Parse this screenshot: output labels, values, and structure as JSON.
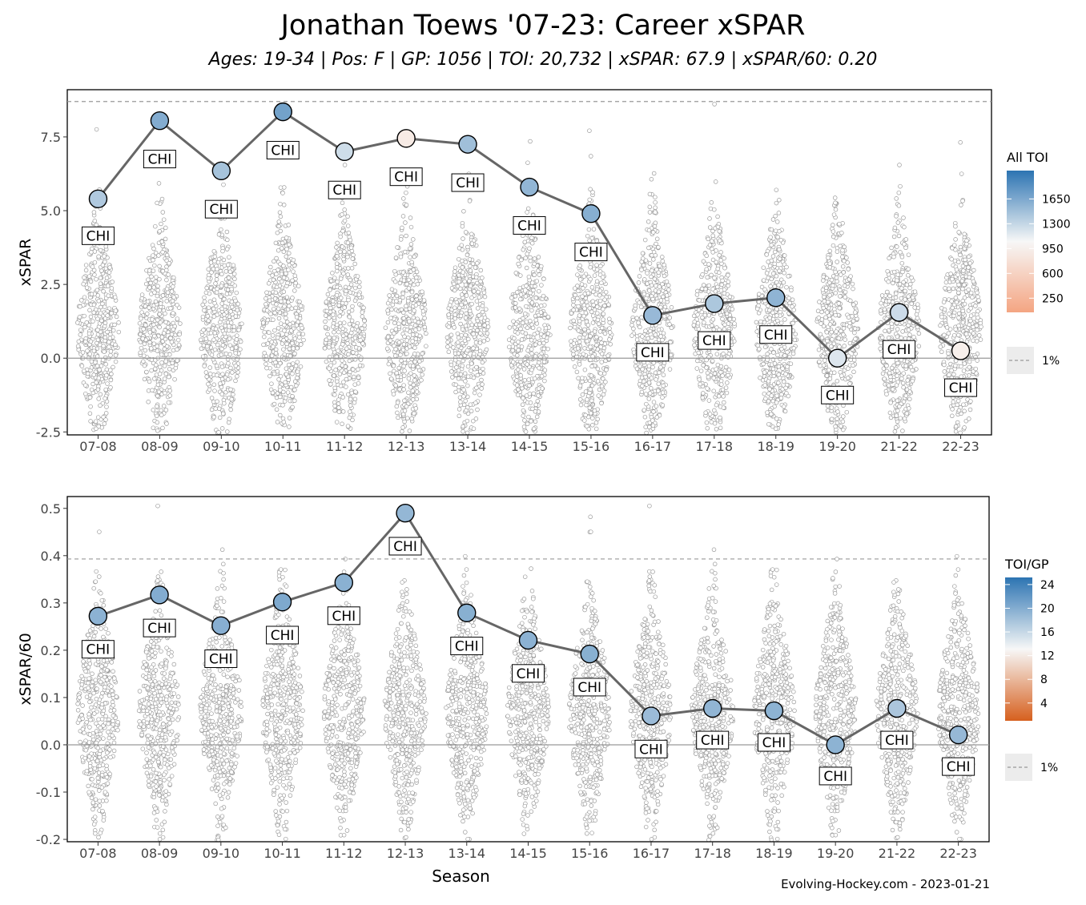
{
  "title": "Jonathan Toews '07-23: Career xSPAR",
  "subtitle": "Ages: 19-34 | Pos: F | GP: 1056 | TOI: 20,732 | xSPAR: 67.9 | xSPAR/60: 0.20",
  "caption": "Evolving-Hockey.com - 2023-01-21",
  "chart_data": [
    {
      "type": "scatter",
      "panel": "top",
      "ylabel": "xSPAR",
      "xlabel": "",
      "categories": [
        "07-08",
        "08-09",
        "09-10",
        "10-11",
        "11-12",
        "12-13",
        "13-14",
        "14-15",
        "15-16",
        "16-17",
        "17-18",
        "18-19",
        "19-20",
        "21-22",
        "22-23"
      ],
      "ylim": [
        -2.6,
        9.1
      ],
      "yticks": [
        -2.5,
        0.0,
        2.5,
        5.0,
        7.5
      ],
      "ytick_labels": [
        "-2.5",
        "0.0",
        "2.5",
        "5.0",
        "7.5"
      ],
      "reference_line": 8.7,
      "zero_line": 0,
      "series": [
        {
          "values": [
            5.4,
            8.05,
            6.35,
            8.35,
            7.0,
            7.45,
            7.25,
            5.8,
            4.9,
            1.45,
            1.85,
            2.05,
            0.0,
            1.55,
            0.25
          ],
          "toi": [
            1400,
            1620,
            1450,
            1700,
            1250,
            900,
            1480,
            1550,
            1600,
            1520,
            1420,
            1560,
            1180,
            1260,
            950
          ],
          "labels": [
            "CHI",
            "CHI",
            "CHI",
            "CHI",
            "CHI",
            "CHI",
            "CHI",
            "CHI",
            "CHI",
            "CHI",
            "CHI",
            "CHI",
            "CHI",
            "CHI",
            "CHI"
          ],
          "label_values": [
            4.15,
            6.75,
            5.05,
            7.05,
            5.7,
            6.15,
            5.95,
            4.5,
            3.6,
            0.2,
            0.6,
            0.8,
            -1.25,
            0.3,
            -1.0
          ]
        }
      ],
      "legend": {
        "title": "All TOI",
        "ticks": [
          1650,
          1300,
          950,
          600,
          250
        ],
        "tick_labels": [
          "1650",
          "1300",
          "950",
          "600",
          "250"
        ],
        "range": [
          50,
          2050
        ],
        "line_label": "1%",
        "placement": "right"
      },
      "grid": false
    },
    {
      "type": "scatter",
      "panel": "bottom",
      "ylabel": "xSPAR/60",
      "xlabel": "Season",
      "categories": [
        "07-08",
        "08-09",
        "09-10",
        "10-11",
        "11-12",
        "12-13",
        "13-14",
        "14-15",
        "15-16",
        "16-17",
        "17-18",
        "18-19",
        "19-20",
        "21-22",
        "22-23"
      ],
      "ylim": [
        -0.205,
        0.525
      ],
      "yticks": [
        -0.2,
        -0.1,
        0.0,
        0.1,
        0.2,
        0.3,
        0.4,
        0.5
      ],
      "ytick_labels": [
        "-0.2",
        "-0.1",
        "0.0",
        "0.1",
        "0.2",
        "0.3",
        "0.4",
        "0.5"
      ],
      "reference_line": 0.393,
      "zero_line": 0,
      "series": [
        {
          "values": [
            0.272,
            0.317,
            0.252,
            0.302,
            0.343,
            0.49,
            0.279,
            0.221,
            0.192,
            0.061,
            0.077,
            0.072,
            0.0,
            0.077,
            0.021
          ],
          "toi_gp": [
            19.5,
            20.0,
            19.8,
            20.3,
            19.6,
            19.0,
            19.7,
            19.5,
            19.7,
            18.6,
            19.2,
            19.4,
            19.4,
            17.6,
            18.9
          ],
          "labels": [
            "CHI",
            "CHI",
            "CHI",
            "CHI",
            "CHI",
            "CHI",
            "CHI",
            "CHI",
            "CHI",
            "CHI",
            "CHI",
            "CHI",
            "CHI",
            "CHI",
            "CHI"
          ],
          "label_values": [
            0.202,
            0.247,
            0.182,
            0.232,
            0.273,
            0.42,
            0.209,
            0.151,
            0.122,
            -0.009,
            0.01,
            0.005,
            -0.066,
            0.01,
            -0.046
          ]
        }
      ],
      "legend": {
        "title": "TOI/GP",
        "ticks": [
          24,
          20,
          16,
          12,
          8,
          4
        ],
        "tick_labels": [
          "24",
          "20",
          "16",
          "12",
          "8",
          "4"
        ],
        "range": [
          1.0,
          25.2
        ],
        "line_label": "1%",
        "placement": "right"
      },
      "grid": false
    }
  ]
}
